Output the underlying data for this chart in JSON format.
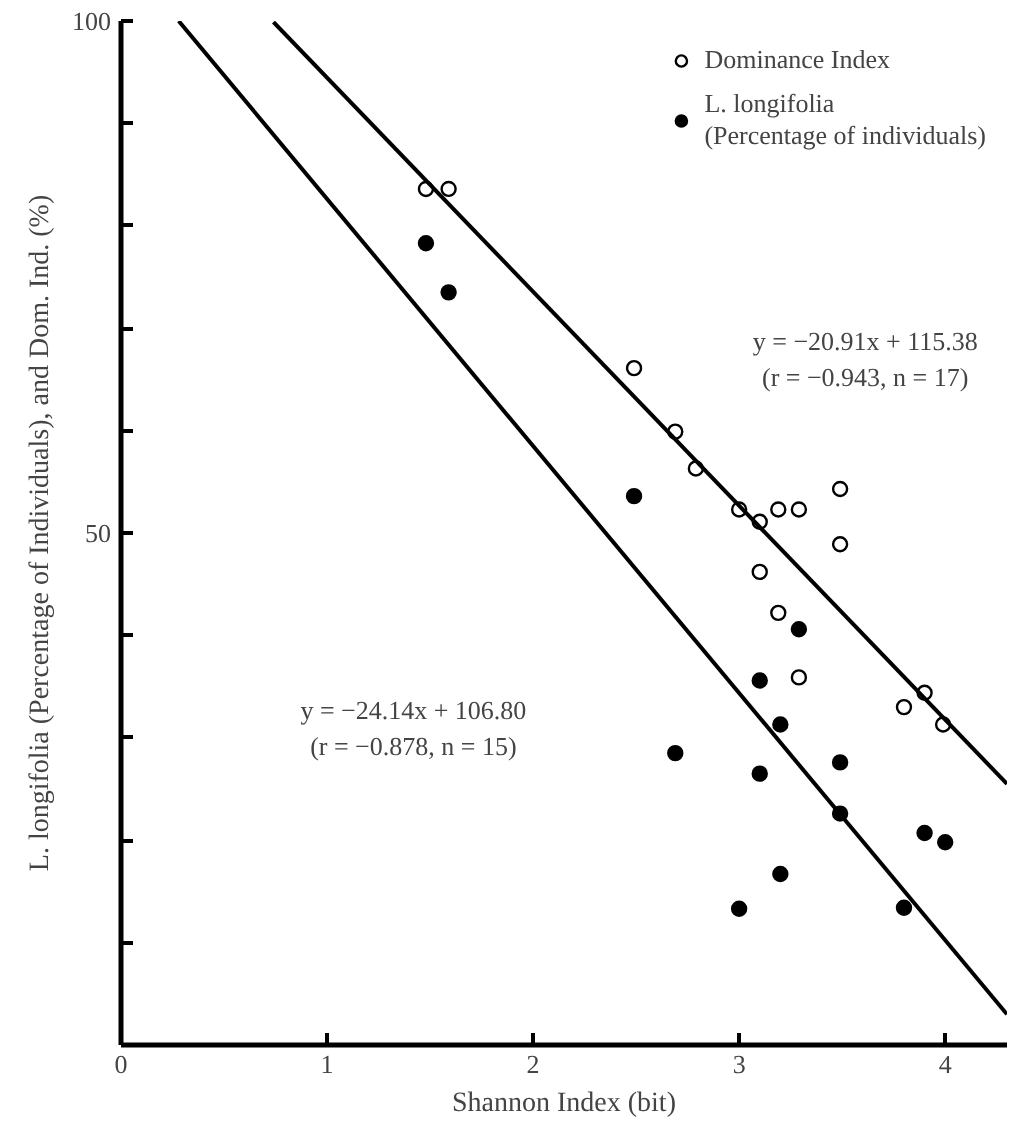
{
  "chart_data": {
    "type": "scatter",
    "xlabel": "Shannon Index (bit)",
    "ylabel": "L. longifolia (Percentage of Individuals), and Dom. Ind. (%)",
    "xlim": [
      0,
      4.3
    ],
    "ylim": [
      0,
      100
    ],
    "xticks": [
      0,
      1,
      2,
      3,
      4
    ],
    "yticks": [
      {
        "value": 0,
        "label": null
      },
      {
        "value": 10,
        "label": null
      },
      {
        "value": 20,
        "label": null
      },
      {
        "value": 30,
        "label": null
      },
      {
        "value": 40,
        "label": null
      },
      50,
      {
        "value": 60,
        "label": null
      },
      {
        "value": 70,
        "label": null
      },
      {
        "value": 80,
        "label": null
      },
      {
        "value": 90,
        "label": null
      },
      100
    ],
    "grid": false,
    "legend": "top right",
    "series": [
      {
        "name": "Dominance Index",
        "color": "#000000",
        "marker": "circle_open",
        "x": [
          1.48,
          1.59,
          2.49,
          2.69,
          2.79,
          3.0,
          3.1,
          3.19,
          3.29,
          3.49,
          3.49,
          3.1,
          3.19,
          3.29,
          3.8,
          3.9,
          3.99
        ],
        "values": [
          83.6,
          83.6,
          66.1,
          59.9,
          56.3,
          52.3,
          51.1,
          52.3,
          52.3,
          54.3,
          48.9,
          46.2,
          42.2,
          35.9,
          33.0,
          34.4,
          31.3
        ]
      },
      {
        "name": "L. longifolia\n(Percentage of individuals)",
        "color": "#000000",
        "marker": "circle",
        "x": [
          1.48,
          1.59,
          2.49,
          3.29,
          3.1,
          3.2,
          2.69,
          3.1,
          3.49,
          3.49,
          3.9,
          4.0,
          3.2,
          3.0,
          3.8
        ],
        "values": [
          78.3,
          73.5,
          53.6,
          40.6,
          35.6,
          31.3,
          28.5,
          26.5,
          27.6,
          22.6,
          20.7,
          19.8,
          16.7,
          13.3,
          13.4
        ]
      },
      {
        "type": "line",
        "color": "#000000",
        "x": [
          0.74,
          4.3
        ],
        "values": [
          99.9,
          25.5
        ]
      },
      {
        "type": "line",
        "color": "#000000",
        "x": [
          0.28,
          4.3
        ],
        "values": [
          100.0,
          3.0
        ]
      }
    ],
    "annotations": [
      "y = −20.91x + 115.38\n(r = −0.943, n = 17)",
      "y = −24.14x + 106.80\n(r = −0.878, n = 15)"
    ]
  }
}
